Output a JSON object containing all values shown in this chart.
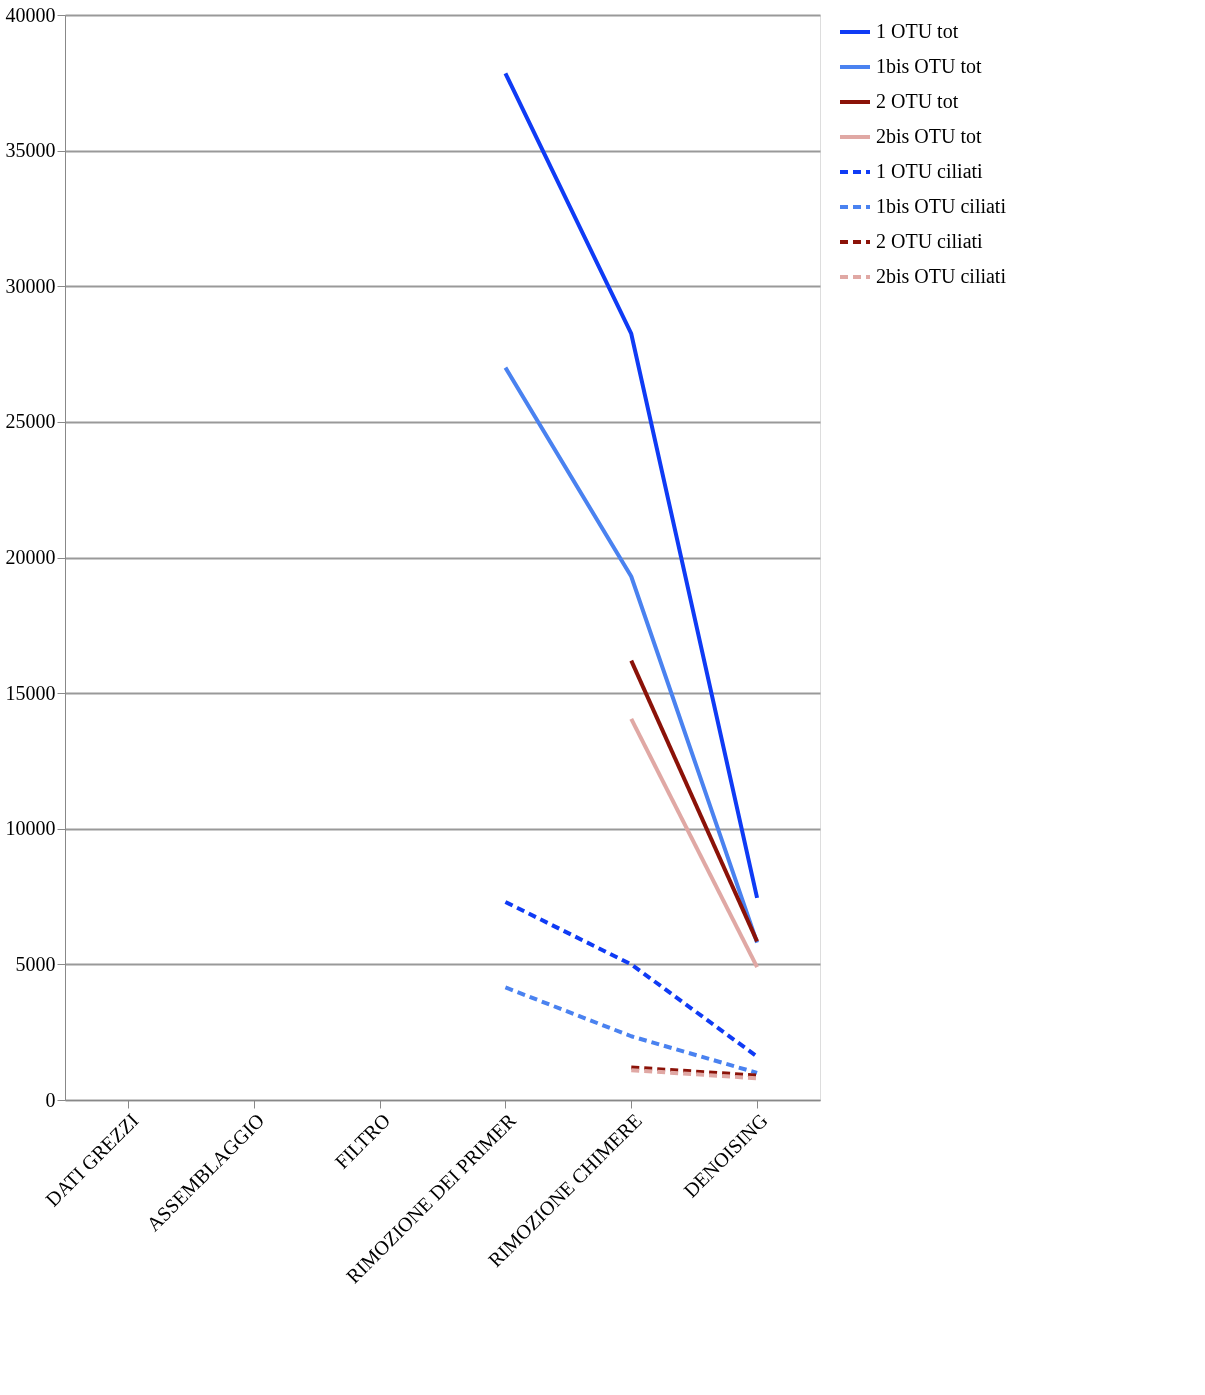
{
  "chart_data": {
    "type": "line",
    "categories": [
      "DATI GREZZI",
      "ASSEMBLAGGIO",
      "FILTRO",
      "RIMOZIONE DEI PRIMER",
      "RIMOZIONE CHIMERE",
      "DENOISING"
    ],
    "ylim": [
      0,
      40000
    ],
    "yticks": [
      0,
      5000,
      10000,
      15000,
      20000,
      25000,
      30000,
      35000,
      40000
    ],
    "grid": "y",
    "legend": "right",
    "marker": "none",
    "series": [
      {
        "name": "1 OTU tot",
        "color": "#0f3bf5",
        "line_style": "solid",
        "values": [
          null,
          null,
          null,
          37850,
          28250,
          7450
        ]
      },
      {
        "name": "1bis OTU tot",
        "color": "#4a82f0",
        "line_style": "solid",
        "values": [
          null,
          null,
          null,
          27000,
          19300,
          5800
        ]
      },
      {
        "name": "2 OTU tot",
        "color": "#8b1208",
        "line_style": "solid",
        "values": [
          null,
          null,
          null,
          null,
          16200,
          5850
        ]
      },
      {
        "name": "2bis OTU tot",
        "color": "#e0a8a4",
        "line_style": "solid",
        "values": [
          null,
          null,
          null,
          null,
          14050,
          4900
        ]
      },
      {
        "name": "1 OTU ciliati",
        "color": "#0f3bf5",
        "line_style": "dashed",
        "values": [
          null,
          null,
          null,
          7300,
          5000,
          1600
        ]
      },
      {
        "name": "1bis OTU ciliati",
        "color": "#4a82f0",
        "line_style": "dashed",
        "values": [
          null,
          null,
          null,
          4150,
          2350,
          1000
        ]
      },
      {
        "name": "2 OTU ciliati",
        "color": "#8b1208",
        "line_style": "dashed",
        "values": [
          null,
          null,
          null,
          null,
          1200,
          900
        ]
      },
      {
        "name": "2bis OTU ciliati",
        "color": "#e0a8a4",
        "line_style": "dashed",
        "values": [
          null,
          null,
          null,
          null,
          1100,
          800
        ]
      }
    ]
  }
}
